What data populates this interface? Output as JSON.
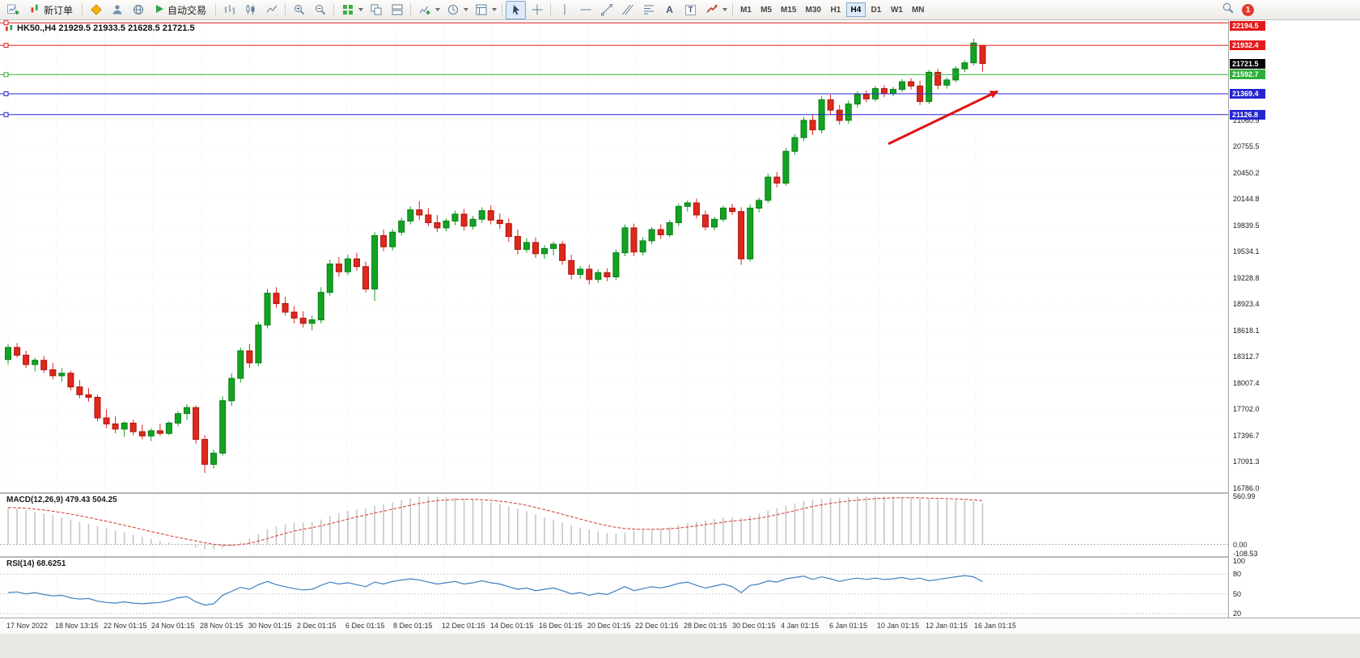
{
  "toolbar": {
    "new_order_label": "新订单",
    "autotrading_label": "自动交易",
    "text_tool": "A",
    "label_tool": "T",
    "timeframes": [
      "M1",
      "M5",
      "M15",
      "M30",
      "H1",
      "H4",
      "D1",
      "W1",
      "MN"
    ],
    "active_timeframe": "H4",
    "alert_badge": "1",
    "icons": [
      "new-chart",
      "new-order",
      "mql5",
      "profile",
      "community",
      "autotrading",
      "chart-bars",
      "chart-candles",
      "chart-line",
      "zoom-in",
      "zoom-out",
      "tile-windows",
      "cascade-windows",
      "tile-horizontal",
      "add-indicator",
      "periods",
      "templates",
      "cursor",
      "crosshair",
      "vertical-line",
      "horizontal-line",
      "trendline",
      "equidistant-channel",
      "fibonacci",
      "text",
      "label",
      "shapes",
      "search",
      "alerts"
    ]
  },
  "chart": {
    "title": "HK50.,H4 21929.5 21933.5 21628.5 21721.5",
    "symbol": "HK50.",
    "timeframe": "H4",
    "open": "21929.5",
    "high": "21933.5",
    "low": "21628.5",
    "close": "21721.5"
  },
  "indicators": {
    "macd": {
      "label": "MACD(12,26,9) 479.43 504.25"
    },
    "rsi": {
      "label": "RSI(14) 68.6251"
    }
  },
  "annotation": {
    "arrow": {
      "from": [
        1098,
        153
      ],
      "to": [
        1233,
        88
      ],
      "color": "#e01212"
    }
  },
  "chart_data": [
    {
      "type": "candlestick",
      "symbol": "HK50.",
      "timeframe": "H4",
      "ylim": [
        16735,
        22225
      ],
      "y_ticks": [
        21060.9,
        20755.5,
        20450.2,
        20144.8,
        19839.5,
        19534.1,
        19228.8,
        18923.4,
        18618.1,
        18312.7,
        18007.4,
        17702.0,
        17396.7,
        17091.3,
        16786.0
      ],
      "x_labels": [
        "17 Nov 2022",
        "18 Nov 13:15",
        "22 Nov 01:15",
        "24 Nov 01:15",
        "28 Nov 01:15",
        "30 Nov 01:15",
        "2 Dec 01:15",
        "6 Dec 01:15",
        "8 Dec 01:15",
        "12 Dec 01:15",
        "14 Dec 01:15",
        "16 Dec 01:15",
        "20 Dec 01:15",
        "22 Dec 01:15",
        "28 Dec 01:15",
        "30 Dec 01:15",
        "4 Jan 01:15",
        "6 Jan 01:15",
        "10 Jan 01:15",
        "12 Jan 01:15",
        "16 Jan 01:15"
      ],
      "hlines": [
        {
          "price": 22194.5,
          "label": "22194.5",
          "color": "#e21b1b",
          "role": "resistance"
        },
        {
          "price": 21932.4,
          "label": "21932.4",
          "color": "#e21b1b",
          "role": "resistance"
        },
        {
          "price": 21592.7,
          "label": "21592.7",
          "color": "#2fae3c",
          "role": "support"
        },
        {
          "price": 21369.4,
          "label": "21369.4",
          "color": "#2525cf",
          "role": "support"
        },
        {
          "price": 21126.8,
          "label": "21126.8",
          "color": "#2525cf",
          "role": "support"
        }
      ],
      "current_price": {
        "price": 21721.5,
        "label": "21721.5",
        "color": "#000000"
      },
      "ohlc": [
        [
          18280,
          18460,
          18220,
          18420
        ],
        [
          18420,
          18470,
          18300,
          18330
        ],
        [
          18330,
          18380,
          18180,
          18220
        ],
        [
          18220,
          18300,
          18140,
          18270
        ],
        [
          18270,
          18320,
          18120,
          18160
        ],
        [
          18160,
          18240,
          18050,
          18090
        ],
        [
          18090,
          18180,
          18020,
          18120
        ],
        [
          18120,
          18150,
          17920,
          17960
        ],
        [
          17960,
          18040,
          17830,
          17870
        ],
        [
          17870,
          17950,
          17790,
          17840
        ],
        [
          17840,
          17870,
          17560,
          17600
        ],
        [
          17600,
          17700,
          17480,
          17530
        ],
        [
          17530,
          17620,
          17420,
          17470
        ],
        [
          17470,
          17560,
          17380,
          17540
        ],
        [
          17540,
          17580,
          17400,
          17440
        ],
        [
          17440,
          17520,
          17350,
          17390
        ],
        [
          17390,
          17480,
          17330,
          17450
        ],
        [
          17450,
          17530,
          17390,
          17420
        ],
        [
          17420,
          17560,
          17400,
          17540
        ],
        [
          17540,
          17680,
          17500,
          17650
        ],
        [
          17650,
          17760,
          17580,
          17720
        ],
        [
          17720,
          17740,
          17300,
          17350
        ],
        [
          17350,
          17400,
          16960,
          17060
        ],
        [
          17060,
          17230,
          17010,
          17190
        ],
        [
          17190,
          17850,
          17160,
          17800
        ],
        [
          17800,
          18120,
          17740,
          18060
        ],
        [
          18060,
          18420,
          18010,
          18380
        ],
        [
          18380,
          18460,
          18180,
          18240
        ],
        [
          18240,
          18720,
          18200,
          18680
        ],
        [
          18680,
          19100,
          18640,
          19050
        ],
        [
          19050,
          19120,
          18880,
          18930
        ],
        [
          18930,
          19010,
          18790,
          18830
        ],
        [
          18830,
          18900,
          18700,
          18760
        ],
        [
          18760,
          18840,
          18650,
          18700
        ],
        [
          18700,
          18790,
          18620,
          18740
        ],
        [
          18740,
          19120,
          18700,
          19060
        ],
        [
          19060,
          19440,
          19020,
          19390
        ],
        [
          19390,
          19470,
          19240,
          19300
        ],
        [
          19300,
          19500,
          19260,
          19450
        ],
        [
          19450,
          19520,
          19310,
          19360
        ],
        [
          19360,
          19420,
          19060,
          19100
        ],
        [
          19100,
          19760,
          18960,
          19720
        ],
        [
          19720,
          19790,
          19540,
          19590
        ],
        [
          19590,
          19800,
          19550,
          19760
        ],
        [
          19760,
          19930,
          19720,
          19890
        ],
        [
          19890,
          20060,
          19850,
          20020
        ],
        [
          20020,
          20120,
          19900,
          19960
        ],
        [
          19960,
          20040,
          19830,
          19870
        ],
        [
          19870,
          19960,
          19760,
          19810
        ],
        [
          19810,
          19920,
          19770,
          19890
        ],
        [
          19890,
          20010,
          19840,
          19970
        ],
        [
          19970,
          20030,
          19780,
          19830
        ],
        [
          19830,
          19950,
          19790,
          19910
        ],
        [
          19910,
          20050,
          19870,
          20010
        ],
        [
          20010,
          20070,
          19850,
          19900
        ],
        [
          19900,
          19980,
          19800,
          19860
        ],
        [
          19860,
          19920,
          19650,
          19710
        ],
        [
          19710,
          19790,
          19500,
          19560
        ],
        [
          19560,
          19690,
          19520,
          19640
        ],
        [
          19640,
          19700,
          19460,
          19510
        ],
        [
          19510,
          19610,
          19450,
          19570
        ],
        [
          19570,
          19650,
          19490,
          19620
        ],
        [
          19620,
          19660,
          19380,
          19430
        ],
        [
          19430,
          19500,
          19210,
          19270
        ],
        [
          19270,
          19370,
          19220,
          19330
        ],
        [
          19330,
          19380,
          19150,
          19210
        ],
        [
          19210,
          19330,
          19170,
          19290
        ],
        [
          19290,
          19340,
          19190,
          19240
        ],
        [
          19240,
          19560,
          19200,
          19520
        ],
        [
          19520,
          19850,
          19480,
          19810
        ],
        [
          19810,
          19860,
          19480,
          19530
        ],
        [
          19530,
          19700,
          19490,
          19660
        ],
        [
          19660,
          19820,
          19620,
          19790
        ],
        [
          19790,
          19850,
          19680,
          19730
        ],
        [
          19730,
          19900,
          19700,
          19870
        ],
        [
          19870,
          20090,
          19830,
          20060
        ],
        [
          20060,
          20130,
          20000,
          20100
        ],
        [
          20100,
          20150,
          19920,
          19960
        ],
        [
          19960,
          20010,
          19780,
          19820
        ],
        [
          19820,
          19940,
          19780,
          19910
        ],
        [
          19910,
          20070,
          19880,
          20040
        ],
        [
          20040,
          20090,
          19960,
          20000
        ],
        [
          20000,
          20050,
          19380,
          19450
        ],
        [
          19450,
          20080,
          19420,
          20040
        ],
        [
          20040,
          20160,
          19990,
          20130
        ],
        [
          20130,
          20440,
          20100,
          20400
        ],
        [
          20400,
          20460,
          20280,
          20330
        ],
        [
          20330,
          20740,
          20300,
          20700
        ],
        [
          20700,
          20900,
          20660,
          20860
        ],
        [
          20860,
          21100,
          20820,
          21060
        ],
        [
          21060,
          21130,
          20890,
          20950
        ],
        [
          20950,
          21340,
          20910,
          21300
        ],
        [
          21300,
          21360,
          21130,
          21180
        ],
        [
          21180,
          21240,
          21010,
          21060
        ],
        [
          21060,
          21290,
          21020,
          21250
        ],
        [
          21250,
          21400,
          21210,
          21360
        ],
        [
          21360,
          21410,
          21270,
          21310
        ],
        [
          21310,
          21460,
          21280,
          21430
        ],
        [
          21430,
          21470,
          21330,
          21370
        ],
        [
          21370,
          21450,
          21340,
          21420
        ],
        [
          21420,
          21540,
          21390,
          21510
        ],
        [
          21510,
          21550,
          21420,
          21460
        ],
        [
          21460,
          21520,
          21240,
          21280
        ],
        [
          21280,
          21650,
          21250,
          21620
        ],
        [
          21620,
          21660,
          21420,
          21470
        ],
        [
          21470,
          21560,
          21430,
          21530
        ],
        [
          21530,
          21690,
          21500,
          21660
        ],
        [
          21660,
          21760,
          21620,
          21730
        ],
        [
          21730,
          22010,
          21700,
          21960
        ],
        [
          21929.5,
          21933.5,
          21628.5,
          21721.5
        ]
      ]
    },
    {
      "type": "bar",
      "name": "MACD",
      "params": "12,26,9",
      "macd_last": 479.43,
      "signal_last": 504.25,
      "ylim": [
        -137,
        589
      ],
      "ticks": [
        {
          "v": 560.99,
          "label": "560.99"
        },
        {
          "v": 0,
          "label": "0.00"
        },
        {
          "v": -108.53,
          "label": "-108.53"
        }
      ],
      "values": [
        430,
        420,
        400,
        380,
        360,
        340,
        315,
        290,
        265,
        240,
        215,
        190,
        165,
        140,
        115,
        90,
        65,
        40,
        20,
        5,
        -10,
        -35,
        -55,
        -60,
        -45,
        -15,
        25,
        70,
        120,
        175,
        210,
        235,
        250,
        255,
        260,
        290,
        330,
        360,
        390,
        410,
        420,
        450,
        470,
        490,
        515,
        540,
        555,
        560,
        555,
        550,
        545,
        535,
        520,
        505,
        490,
        470,
        445,
        415,
        385,
        350,
        315,
        285,
        255,
        225,
        195,
        170,
        150,
        135,
        130,
        140,
        155,
        165,
        175,
        185,
        200,
        220,
        245,
        265,
        280,
        295,
        310,
        320,
        310,
        330,
        360,
        395,
        420,
        450,
        480,
        510,
        525,
        530,
        540,
        545,
        550,
        555,
        558,
        560,
        558,
        555,
        550,
        545,
        540,
        530,
        525,
        520,
        515,
        510,
        500,
        479
      ]
    },
    {
      "type": "line",
      "name": "RSI",
      "params": "14",
      "last": 68.6251,
      "ylim": [
        14,
        105
      ],
      "ticks": [
        {
          "v": 100,
          "label": "100"
        },
        {
          "v": 80,
          "label": "80"
        },
        {
          "v": 50,
          "label": "50"
        },
        {
          "v": 20,
          "label": "20"
        }
      ],
      "levels": [
        80,
        50,
        20
      ],
      "values": [
        52,
        53,
        50,
        52,
        49,
        47,
        48,
        44,
        42,
        43,
        39,
        37,
        36,
        38,
        36,
        35,
        36,
        37,
        40,
        44,
        46,
        38,
        33,
        35,
        48,
        54,
        60,
        57,
        64,
        69,
        64,
        61,
        58,
        56,
        57,
        63,
        68,
        65,
        67,
        64,
        61,
        68,
        65,
        69,
        71,
        73,
        71,
        68,
        65,
        67,
        69,
        65,
        67,
        70,
        67,
        65,
        61,
        57,
        59,
        55,
        57,
        59,
        55,
        50,
        52,
        48,
        51,
        49,
        55,
        61,
        55,
        58,
        61,
        59,
        62,
        66,
        68,
        63,
        59,
        62,
        65,
        61,
        52,
        63,
        65,
        70,
        68,
        73,
        75,
        77,
        72,
        76,
        73,
        69,
        72,
        74,
        72,
        74,
        72,
        73,
        75,
        72,
        74,
        70,
        72,
        74,
        76,
        78,
        76,
        68.6
      ]
    }
  ]
}
